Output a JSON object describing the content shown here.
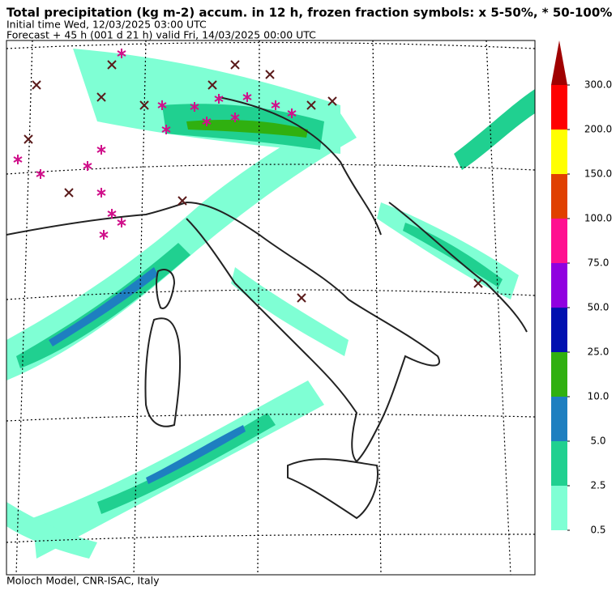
{
  "header": {
    "title": "Total precipitation (kg m-2) accum. in 12 h, frozen fraction symbols: x 5-50%, * 50-100%",
    "initial_time": "Initial time  Wed, 12/03/2025  03:00 UTC",
    "forecast": "Forecast  +  45 h  (001 d 21 h)  valid Fri, 14/03/2025 00:00 UTC"
  },
  "colorbar": {
    "levels": [
      {
        "value": 0.5,
        "label": "0.5"
      },
      {
        "value": 2.5,
        "label": "2.5"
      },
      {
        "value": 5,
        "label": "5.0"
      },
      {
        "value": 10,
        "label": "10.0"
      },
      {
        "value": 25,
        "label": "25.0"
      },
      {
        "value": 50,
        "label": "50.0"
      },
      {
        "value": 75,
        "label": "75.0"
      },
      {
        "value": 100,
        "label": "100.0"
      },
      {
        "value": 150,
        "label": "150.0"
      },
      {
        "value": 200,
        "label": "200.0"
      },
      {
        "value": 300,
        "label": "300.0"
      }
    ],
    "colors": [
      "#7fffd4",
      "#20d090",
      "#1e7fc0",
      "#30b010",
      "#0010b0",
      "#9000e0",
      "#ff1090",
      "#e04000",
      "#ffff00",
      "#ff0000",
      "#a00000"
    ]
  },
  "footer": "Moloch Model, CNR-ISAC, Italy"
}
